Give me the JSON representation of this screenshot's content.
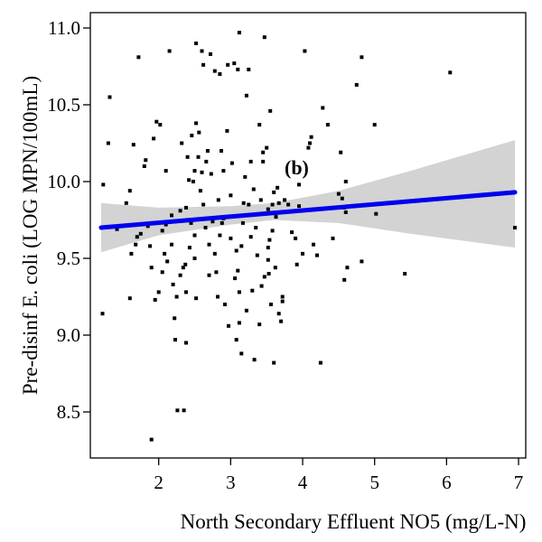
{
  "chart_data": {
    "type": "scatter",
    "title": "",
    "annotation": "(b)",
    "xlabel": "North Secondary Effluent NO5 (mg/L-N)",
    "ylabel": "Pre-disinf E. coli (LOG MPN/100mL)",
    "xlim": [
      1.05,
      7.1
    ],
    "ylim": [
      8.2,
      11.1
    ],
    "xticks": [
      2,
      3,
      4,
      5,
      6,
      7
    ],
    "yticks": [
      8.5,
      9.0,
      9.5,
      10.0,
      10.5,
      11.0
    ],
    "xtick_labels": [
      "2",
      "3",
      "4",
      "5",
      "6",
      "7"
    ],
    "ytick_labels": [
      "8.5",
      "9.0",
      "9.5",
      "10.0",
      "10.5",
      "11.0"
    ],
    "grid": false,
    "colors": {
      "points": "#000000",
      "fit_line": "#0000ee",
      "confidence_band": "#d3d3d3"
    },
    "fit_line": {
      "x": [
        1.2,
        6.95
      ],
      "y": [
        9.7,
        9.93
      ]
    },
    "confidence_band": {
      "x": [
        1.2,
        2.0,
        3.0,
        3.6,
        4.5,
        5.5,
        6.95
      ],
      "lower": [
        9.54,
        9.65,
        9.72,
        9.75,
        9.73,
        9.66,
        9.57
      ],
      "upper": [
        9.86,
        9.83,
        9.84,
        9.86,
        9.94,
        10.07,
        10.27
      ]
    },
    "points": [
      [
        1.22,
        9.14
      ],
      [
        1.23,
        9.98
      ],
      [
        1.3,
        10.25
      ],
      [
        1.32,
        10.55
      ],
      [
        1.42,
        9.69
      ],
      [
        1.55,
        9.86
      ],
      [
        1.6,
        9.94
      ],
      [
        1.62,
        9.53
      ],
      [
        1.6,
        9.24
      ],
      [
        1.65,
        10.24
      ],
      [
        1.68,
        9.59
      ],
      [
        1.7,
        9.64
      ],
      [
        1.72,
        10.81
      ],
      [
        1.75,
        9.66
      ],
      [
        1.8,
        10.1
      ],
      [
        1.82,
        10.14
      ],
      [
        1.85,
        9.71
      ],
      [
        1.88,
        9.58
      ],
      [
        1.9,
        8.32
      ],
      [
        1.9,
        9.44
      ],
      [
        1.93,
        10.28
      ],
      [
        1.95,
        9.23
      ],
      [
        1.97,
        10.39
      ],
      [
        2.0,
        9.28
      ],
      [
        2.02,
        10.37
      ],
      [
        2.05,
        9.41
      ],
      [
        2.05,
        9.68
      ],
      [
        2.08,
        9.53
      ],
      [
        2.1,
        10.07
      ],
      [
        2.1,
        9.72
      ],
      [
        2.12,
        9.48
      ],
      [
        2.15,
        10.85
      ],
      [
        2.18,
        9.78
      ],
      [
        2.18,
        9.59
      ],
      [
        2.2,
        9.33
      ],
      [
        2.22,
        9.11
      ],
      [
        2.23,
        8.97
      ],
      [
        2.25,
        9.25
      ],
      [
        2.26,
        8.51
      ],
      [
        2.3,
        9.81
      ],
      [
        2.3,
        9.39
      ],
      [
        2.32,
        10.25
      ],
      [
        2.34,
        9.44
      ],
      [
        2.35,
        8.51
      ],
      [
        2.37,
        9.46
      ],
      [
        2.38,
        9.28
      ],
      [
        2.38,
        8.95
      ],
      [
        2.38,
        9.83
      ],
      [
        2.4,
        10.16
      ],
      [
        2.42,
        10.01
      ],
      [
        2.43,
        9.57
      ],
      [
        2.45,
        9.73
      ],
      [
        2.46,
        10.3
      ],
      [
        2.48,
        10.0
      ],
      [
        2.5,
        10.07
      ],
      [
        2.5,
        9.65
      ],
      [
        2.5,
        9.5
      ],
      [
        2.52,
        10.38
      ],
      [
        2.52,
        10.9
      ],
      [
        2.52,
        9.24
      ],
      [
        2.55,
        10.16
      ],
      [
        2.56,
        10.32
      ],
      [
        2.58,
        9.94
      ],
      [
        2.6,
        10.85
      ],
      [
        2.6,
        10.06
      ],
      [
        2.62,
        9.85
      ],
      [
        2.62,
        10.76
      ],
      [
        2.65,
        9.7
      ],
      [
        2.66,
        10.13
      ],
      [
        2.68,
        10.2
      ],
      [
        2.7,
        9.59
      ],
      [
        2.7,
        9.39
      ],
      [
        2.72,
        10.83
      ],
      [
        2.73,
        10.05
      ],
      [
        2.75,
        9.74
      ],
      [
        2.78,
        10.72
      ],
      [
        2.78,
        9.53
      ],
      [
        2.8,
        9.41
      ],
      [
        2.82,
        9.25
      ],
      [
        2.83,
        9.88
      ],
      [
        2.85,
        10.7
      ],
      [
        2.85,
        9.65
      ],
      [
        2.87,
        10.2
      ],
      [
        2.88,
        9.73
      ],
      [
        2.9,
        10.07
      ],
      [
        2.9,
        9.76
      ],
      [
        2.92,
        9.2
      ],
      [
        2.95,
        10.33
      ],
      [
        2.96,
        10.76
      ],
      [
        2.97,
        9.06
      ],
      [
        3.0,
        9.63
      ],
      [
        3.0,
        9.91
      ],
      [
        3.02,
        10.12
      ],
      [
        3.05,
        10.77
      ],
      [
        3.06,
        9.37
      ],
      [
        3.08,
        9.55
      ],
      [
        3.08,
        8.97
      ],
      [
        3.1,
        9.42
      ],
      [
        3.1,
        10.73
      ],
      [
        3.12,
        9.28
      ],
      [
        3.12,
        9.08
      ],
      [
        3.12,
        10.97
      ],
      [
        3.15,
        8.88
      ],
      [
        3.15,
        9.58
      ],
      [
        3.17,
        9.73
      ],
      [
        3.18,
        9.86
      ],
      [
        3.2,
        10.03
      ],
      [
        3.22,
        10.56
      ],
      [
        3.22,
        9.16
      ],
      [
        3.25,
        10.73
      ],
      [
        3.25,
        9.85
      ],
      [
        3.28,
        9.64
      ],
      [
        3.28,
        10.13
      ],
      [
        3.3,
        9.29
      ],
      [
        3.32,
        9.95
      ],
      [
        3.33,
        8.84
      ],
      [
        3.35,
        9.7
      ],
      [
        3.37,
        9.52
      ],
      [
        3.4,
        9.07
      ],
      [
        3.4,
        10.37
      ],
      [
        3.42,
        9.88
      ],
      [
        3.43,
        9.32
      ],
      [
        3.45,
        10.13
      ],
      [
        3.45,
        10.19
      ],
      [
        3.47,
        10.94
      ],
      [
        3.47,
        9.38
      ],
      [
        3.5,
        10.22
      ],
      [
        3.52,
        9.82
      ],
      [
        3.52,
        9.49
      ],
      [
        3.52,
        9.57
      ],
      [
        3.53,
        9.4
      ],
      [
        3.54,
        9.62
      ],
      [
        3.55,
        10.46
      ],
      [
        3.56,
        9.2
      ],
      [
        3.58,
        9.68
      ],
      [
        3.58,
        9.85
      ],
      [
        3.6,
        8.82
      ],
      [
        3.6,
        9.93
      ],
      [
        3.62,
        9.44
      ],
      [
        3.63,
        9.77
      ],
      [
        3.65,
        9.96
      ],
      [
        3.67,
        9.86
      ],
      [
        3.67,
        9.14
      ],
      [
        3.7,
        9.09
      ],
      [
        3.72,
        9.22
      ],
      [
        3.72,
        9.25
      ],
      [
        3.75,
        9.88
      ],
      [
        3.8,
        9.85
      ],
      [
        3.85,
        9.67
      ],
      [
        3.9,
        9.63
      ],
      [
        3.92,
        9.46
      ],
      [
        3.95,
        9.98
      ],
      [
        3.95,
        9.84
      ],
      [
        4.0,
        9.53
      ],
      [
        4.03,
        10.85
      ],
      [
        4.08,
        10.22
      ],
      [
        4.1,
        10.25
      ],
      [
        4.12,
        10.29
      ],
      [
        4.15,
        9.59
      ],
      [
        4.2,
        9.52
      ],
      [
        4.25,
        8.82
      ],
      [
        4.28,
        10.48
      ],
      [
        4.35,
        10.37
      ],
      [
        4.42,
        9.63
      ],
      [
        4.5,
        9.92
      ],
      [
        4.53,
        10.19
      ],
      [
        4.55,
        9.89
      ],
      [
        4.58,
        9.36
      ],
      [
        4.58,
        9.83
      ],
      [
        4.6,
        10.0
      ],
      [
        4.6,
        9.8
      ],
      [
        4.62,
        9.44
      ],
      [
        4.75,
        10.63
      ],
      [
        4.82,
        10.81
      ],
      [
        4.82,
        9.48
      ],
      [
        5.0,
        10.37
      ],
      [
        5.02,
        9.79
      ],
      [
        5.42,
        9.4
      ],
      [
        6.05,
        10.71
      ],
      [
        6.95,
        9.7
      ]
    ]
  }
}
